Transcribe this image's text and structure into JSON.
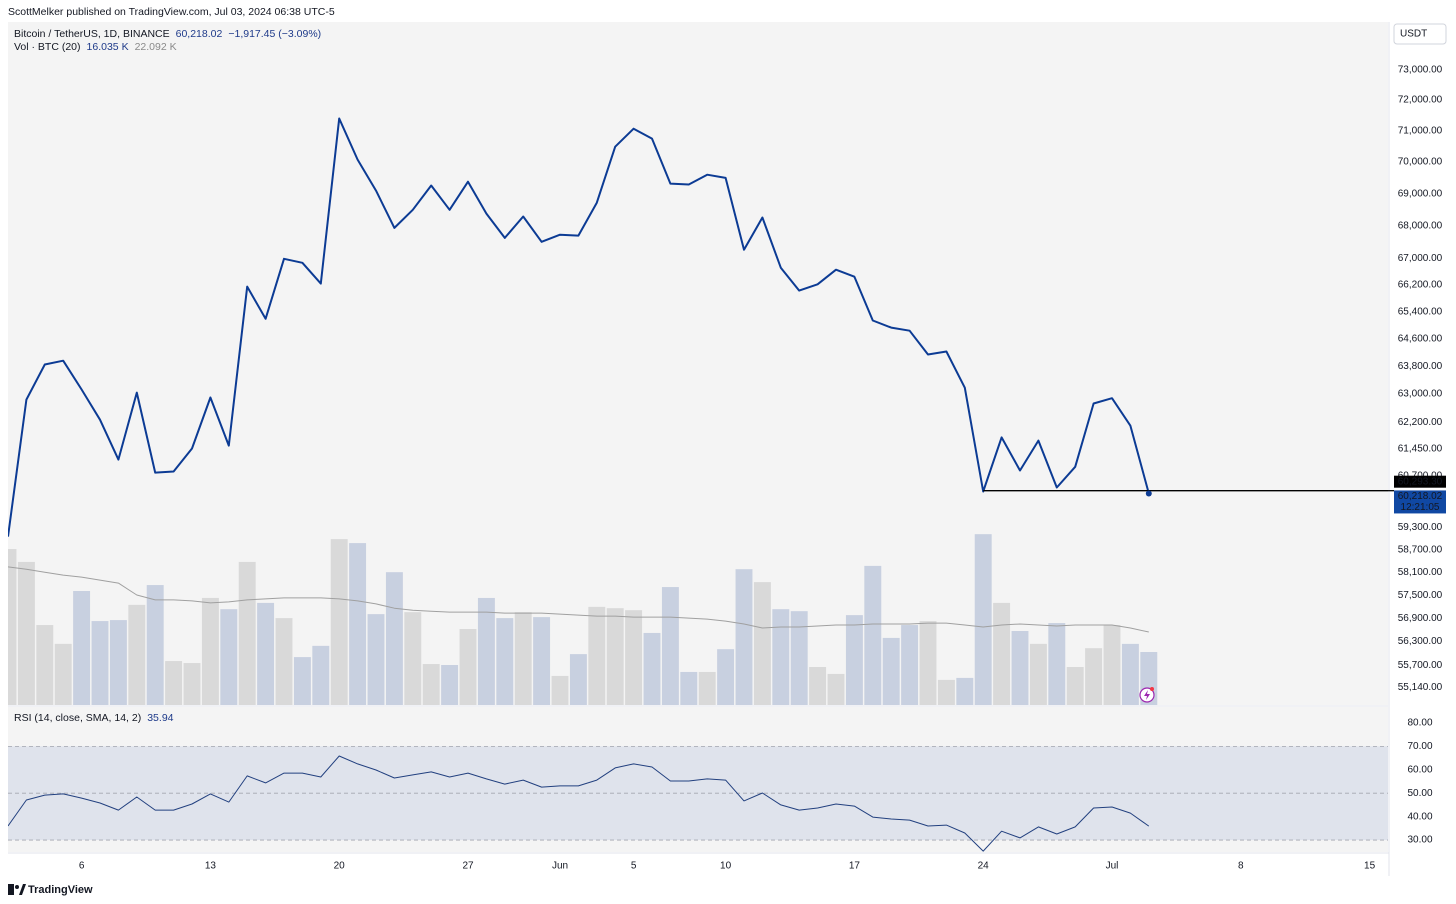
{
  "header": {
    "publisher": "ScottMelker published on TradingView.com, Jul 03, 2024 06:38 UTC-5",
    "brand": "TradingView"
  },
  "chart_data": [
    {
      "type": "line",
      "title": "Bitcoin / TetherUS, 1D, BINANCE",
      "last": "60,218.02",
      "change": "−1,917.45 (−3.09%)",
      "currency": "USDT",
      "x": [
        "2024-05-02",
        "2024-05-03",
        "2024-05-04",
        "2024-05-05",
        "2024-05-06",
        "2024-05-07",
        "2024-05-08",
        "2024-05-09",
        "2024-05-10",
        "2024-05-11",
        "2024-05-12",
        "2024-05-13",
        "2024-05-14",
        "2024-05-15",
        "2024-05-16",
        "2024-05-17",
        "2024-05-18",
        "2024-05-19",
        "2024-05-20",
        "2024-05-21",
        "2024-05-22",
        "2024-05-23",
        "2024-05-24",
        "2024-05-25",
        "2024-05-26",
        "2024-05-27",
        "2024-05-28",
        "2024-05-29",
        "2024-05-30",
        "2024-05-31",
        "2024-06-01",
        "2024-06-02",
        "2024-06-03",
        "2024-06-04",
        "2024-06-05",
        "2024-06-06",
        "2024-06-07",
        "2024-06-08",
        "2024-06-09",
        "2024-06-10",
        "2024-06-11",
        "2024-06-12",
        "2024-06-13",
        "2024-06-14",
        "2024-06-15",
        "2024-06-16",
        "2024-06-17",
        "2024-06-18",
        "2024-06-19",
        "2024-06-20",
        "2024-06-21",
        "2024-06-22",
        "2024-06-23",
        "2024-06-24",
        "2024-06-25",
        "2024-06-26",
        "2024-06-27",
        "2024-06-28",
        "2024-06-29",
        "2024-06-30",
        "2024-07-01",
        "2024-07-02",
        "2024-07-03"
      ],
      "values": [
        59050,
        62840,
        63850,
        63960,
        63130,
        62270,
        61150,
        63040,
        60790,
        60820,
        61460,
        62900,
        61540,
        66150,
        65190,
        66990,
        66870,
        66240,
        71400,
        70080,
        69100,
        67940,
        68500,
        69260,
        68500,
        69380,
        68380,
        67630,
        68290,
        67510,
        67730,
        67700,
        68720,
        70490,
        71070,
        70750,
        69320,
        69290,
        69600,
        69500,
        67270,
        68260,
        66720,
        66030,
        66220,
        66660,
        66450,
        65140,
        64930,
        64840,
        64140,
        64230,
        63180,
        60270,
        61770,
        60850,
        61680,
        60380,
        60950,
        62730,
        62880,
        62100,
        60218.02
      ],
      "color": "#0c3b94",
      "log": true,
      "xlim": [
        "2024-05-02",
        "2024-07-16"
      ],
      "ylim": [
        54700,
        74600
      ],
      "yticks": [
        {
          "value": 73000,
          "label": "73,000.00"
        },
        {
          "value": 72000,
          "label": "72,000.00"
        },
        {
          "value": 71000,
          "label": "71,000.00"
        },
        {
          "value": 70000,
          "label": "70,000.00"
        },
        {
          "value": 69000,
          "label": "69,000.00"
        },
        {
          "value": 68000,
          "label": "68,000.00"
        },
        {
          "value": 67000,
          "label": "67,000.00"
        },
        {
          "value": 66200,
          "label": "66,200.00"
        },
        {
          "value": 65400,
          "label": "65,400.00"
        },
        {
          "value": 64600,
          "label": "64,600.00"
        },
        {
          "value": 63800,
          "label": "63,800.00"
        },
        {
          "value": 63000,
          "label": "63,000.00"
        },
        {
          "value": 62200,
          "label": "62,200.00"
        },
        {
          "value": 61450,
          "label": "61,450.00"
        },
        {
          "value": 60700,
          "label": "60,700.00"
        },
        {
          "value": 59300,
          "label": "59,300.00"
        },
        {
          "value": 58700,
          "label": "58,700.00"
        },
        {
          "value": 58100,
          "label": "58,100.00"
        },
        {
          "value": 57500,
          "label": "57,500.00"
        },
        {
          "value": 56900,
          "label": "56,900.00"
        },
        {
          "value": 56300,
          "label": "56,300.00"
        },
        {
          "value": 55700,
          "label": "55,700.00"
        },
        {
          "value": 55140,
          "label": "55,140.00"
        }
      ],
      "hline": {
        "value": 60293.3,
        "label": "60,293.30",
        "start": "2024-06-24",
        "color": "#000000"
      },
      "last_label": "60,218.02",
      "countdown": "12:21:05"
    },
    {
      "type": "bar",
      "title": "Vol · BTC (20)",
      "last": "16.035 K",
      "ma_last": "22.092 K",
      "x": [
        "2024-05-02",
        "2024-05-03",
        "2024-05-04",
        "2024-05-05",
        "2024-05-06",
        "2024-05-07",
        "2024-05-08",
        "2024-05-09",
        "2024-05-10",
        "2024-05-11",
        "2024-05-12",
        "2024-05-13",
        "2024-05-14",
        "2024-05-15",
        "2024-05-16",
        "2024-05-17",
        "2024-05-18",
        "2024-05-19",
        "2024-05-20",
        "2024-05-21",
        "2024-05-22",
        "2024-05-23",
        "2024-05-24",
        "2024-05-25",
        "2024-05-26",
        "2024-05-27",
        "2024-05-28",
        "2024-05-29",
        "2024-05-30",
        "2024-05-31",
        "2024-06-01",
        "2024-06-02",
        "2024-06-03",
        "2024-06-04",
        "2024-06-05",
        "2024-06-06",
        "2024-06-07",
        "2024-06-08",
        "2024-06-09",
        "2024-06-10",
        "2024-06-11",
        "2024-06-12",
        "2024-06-13",
        "2024-06-14",
        "2024-06-15",
        "2024-06-16",
        "2024-06-17",
        "2024-06-18",
        "2024-06-19",
        "2024-06-20",
        "2024-06-21",
        "2024-06-22",
        "2024-06-23",
        "2024-06-24",
        "2024-06-25",
        "2024-06-26",
        "2024-06-27",
        "2024-06-28",
        "2024-06-29",
        "2024-06-30",
        "2024-07-01",
        "2024-07-02",
        "2024-07-03"
      ],
      "values": [
        47.2,
        43.3,
        24.2,
        18.5,
        34.5,
        25.4,
        25.7,
        30.3,
        36.3,
        13.3,
        12.7,
        32.4,
        29.0,
        43.3,
        30.9,
        26.3,
        14.5,
        17.9,
        50.2,
        49.0,
        27.5,
        40.2,
        28.1,
        12.4,
        12.1,
        23.0,
        32.4,
        26.3,
        28.1,
        26.6,
        8.8,
        15.4,
        29.7,
        29.3,
        28.7,
        21.8,
        35.7,
        10.0,
        10.0,
        16.9,
        41.1,
        37.2,
        29.0,
        28.4,
        11.5,
        9.4,
        27.2,
        42.1,
        20.3,
        24.2,
        25.4,
        7.6,
        8.2,
        51.7,
        30.9,
        22.4,
        18.5,
        24.8,
        11.5,
        17.2,
        24.2,
        18.5,
        16.035
      ],
      "colors": [
        "#d9d9d9",
        "#d9d9d9",
        "#d9d9d9",
        "#d9d9d9",
        "#c8d0e0",
        "#c8d0e0",
        "#c8d0e0",
        "#d9d9d9",
        "#c8d0e0",
        "#d9d9d9",
        "#d9d9d9",
        "#d9d9d9",
        "#c8d0e0",
        "#d9d9d9",
        "#c8d0e0",
        "#d9d9d9",
        "#c8d0e0",
        "#c8d0e0",
        "#d9d9d9",
        "#c8d0e0",
        "#c8d0e0",
        "#c8d0e0",
        "#d9d9d9",
        "#d9d9d9",
        "#c8d0e0",
        "#d9d9d9",
        "#c8d0e0",
        "#c8d0e0",
        "#d9d9d9",
        "#c8d0e0",
        "#d9d9d9",
        "#c8d0e0",
        "#d9d9d9",
        "#d9d9d9",
        "#d9d9d9",
        "#c8d0e0",
        "#c8d0e0",
        "#c8d0e0",
        "#d9d9d9",
        "#c8d0e0",
        "#c8d0e0",
        "#d9d9d9",
        "#c8d0e0",
        "#c8d0e0",
        "#d9d9d9",
        "#d9d9d9",
        "#c8d0e0",
        "#c8d0e0",
        "#c8d0e0",
        "#c8d0e0",
        "#d9d9d9",
        "#d9d9d9",
        "#c8d0e0",
        "#c8d0e0",
        "#d9d9d9",
        "#c8d0e0",
        "#d9d9d9",
        "#c8d0e0",
        "#d9d9d9",
        "#d9d9d9",
        "#d9d9d9",
        "#c8d0e0",
        "#c8d0e0"
      ],
      "ma": {
        "color": "#a0a0a0",
        "values": [
          41.8,
          41.1,
          40.2,
          39.3,
          38.7,
          37.8,
          36.9,
          33.3,
          31.8,
          31.8,
          31.5,
          30.9,
          31.2,
          31.8,
          32.1,
          32.4,
          32.4,
          32.4,
          32.1,
          31.5,
          30.6,
          29.3,
          28.7,
          28.4,
          28.1,
          28.1,
          28.1,
          27.8,
          27.8,
          27.8,
          27.5,
          27.2,
          26.9,
          26.9,
          26.6,
          26.6,
          26.6,
          26.3,
          26.0,
          25.4,
          24.5,
          23.3,
          23.6,
          23.6,
          23.9,
          24.2,
          24.2,
          24.5,
          24.5,
          24.5,
          24.8,
          24.8,
          24.2,
          23.6,
          24.2,
          24.5,
          24.2,
          23.9,
          24.2,
          24.2,
          24.2,
          23.3,
          22.092
        ]
      },
      "xlim": [
        "2024-05-02",
        "2024-07-16"
      ],
      "ylim": [
        0,
        206.7
      ]
    },
    {
      "type": "line",
      "title": "RSI (14, close, SMA, 14, 2)",
      "last": "35.94",
      "x": [
        "2024-05-02",
        "2024-05-03",
        "2024-05-04",
        "2024-05-05",
        "2024-05-06",
        "2024-05-07",
        "2024-05-08",
        "2024-05-09",
        "2024-05-10",
        "2024-05-11",
        "2024-05-12",
        "2024-05-13",
        "2024-05-14",
        "2024-05-15",
        "2024-05-16",
        "2024-05-17",
        "2024-05-18",
        "2024-05-19",
        "2024-05-20",
        "2024-05-21",
        "2024-05-22",
        "2024-05-23",
        "2024-05-24",
        "2024-05-25",
        "2024-05-26",
        "2024-05-27",
        "2024-05-28",
        "2024-05-29",
        "2024-05-30",
        "2024-05-31",
        "2024-06-01",
        "2024-06-02",
        "2024-06-03",
        "2024-06-04",
        "2024-06-05",
        "2024-06-06",
        "2024-06-07",
        "2024-06-08",
        "2024-06-09",
        "2024-06-10",
        "2024-06-11",
        "2024-06-12",
        "2024-06-13",
        "2024-06-14",
        "2024-06-15",
        "2024-06-16",
        "2024-06-17",
        "2024-06-18",
        "2024-06-19",
        "2024-06-20",
        "2024-06-21",
        "2024-06-22",
        "2024-06-23",
        "2024-06-24",
        "2024-06-25",
        "2024-06-26",
        "2024-06-27",
        "2024-06-28",
        "2024-06-29",
        "2024-06-30",
        "2024-07-01",
        "2024-07-02",
        "2024-07-03"
      ],
      "values": [
        36.0,
        47.1,
        49.2,
        49.7,
        47.9,
        45.8,
        42.8,
        48.4,
        42.8,
        42.8,
        45.4,
        49.7,
        46.2,
        57.4,
        54.4,
        58.6,
        58.6,
        56.9,
        65.9,
        62.5,
        59.9,
        56.5,
        57.8,
        59.1,
        56.9,
        58.6,
        56.1,
        53.9,
        55.6,
        52.6,
        53.1,
        53.1,
        55.6,
        60.8,
        62.5,
        61.2,
        55.2,
        55.2,
        56.1,
        55.6,
        46.7,
        50.1,
        45.0,
        42.8,
        43.7,
        45.4,
        44.5,
        39.8,
        39.0,
        38.5,
        36.0,
        36.4,
        33.0,
        25.3,
        33.8,
        30.9,
        35.6,
        32.6,
        35.6,
        43.7,
        44.1,
        41.5,
        35.94
      ],
      "color": "#22407f",
      "band": [
        30,
        70
      ],
      "band_color": "#dfe3ec",
      "levels": [
        70,
        50,
        30
      ],
      "xlim": [
        "2024-05-02",
        "2024-07-16"
      ],
      "ylim": [
        24.9,
        86.8
      ],
      "yticks": [
        {
          "value": 80,
          "label": "80.00"
        },
        {
          "value": 70,
          "label": "70.00"
        },
        {
          "value": 60,
          "label": "60.00"
        },
        {
          "value": 50,
          "label": "50.00"
        },
        {
          "value": 40,
          "label": "40.00"
        },
        {
          "value": 30,
          "label": "30.00"
        }
      ],
      "xticks": [
        {
          "value": "2024-05-06",
          "label": "6"
        },
        {
          "value": "2024-05-13",
          "label": "13"
        },
        {
          "value": "2024-05-20",
          "label": "20"
        },
        {
          "value": "2024-05-27",
          "label": "27"
        },
        {
          "value": "2024-06-01",
          "label": "Jun"
        },
        {
          "value": "2024-06-05",
          "label": "5"
        },
        {
          "value": "2024-06-10",
          "label": "10"
        },
        {
          "value": "2024-06-17",
          "label": "17"
        },
        {
          "value": "2024-06-24",
          "label": "24"
        },
        {
          "value": "2024-07-01",
          "label": "Jul"
        },
        {
          "value": "2024-07-08",
          "label": "8"
        },
        {
          "value": "2024-07-15",
          "label": "15"
        }
      ]
    }
  ]
}
